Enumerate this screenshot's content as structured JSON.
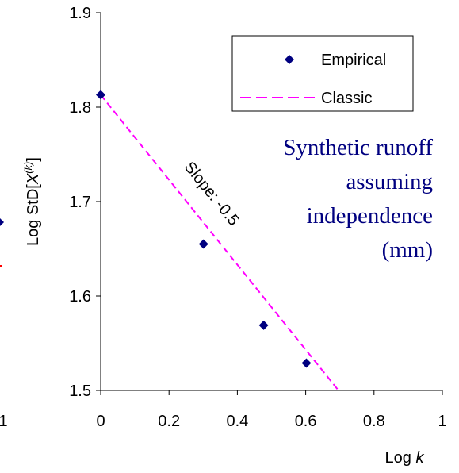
{
  "chart_data": {
    "type": "scatter",
    "ylabel_parts": [
      "Log StD[",
      "X",
      "(k)",
      "]"
    ],
    "xlabel_parts": [
      "Log ",
      "k"
    ],
    "xlim": [
      0,
      1
    ],
    "xticks": [
      0,
      0.2,
      0.4,
      0.6,
      0.8,
      1
    ],
    "ylim": [
      1.5,
      1.9
    ],
    "yticks": [
      1.5,
      1.6,
      1.7,
      1.8,
      1.9
    ],
    "series": [
      {
        "name": "Empirical",
        "color": "#000080",
        "x": [
          0,
          0.301,
          0.477,
          0.602
        ],
        "values": [
          1.813,
          1.655,
          1.569,
          1.529
        ]
      },
      {
        "name": "Classic",
        "color": "#ff00ff",
        "x": [
          0,
          0.696
        ],
        "values": [
          1.813,
          1.5
        ]
      }
    ],
    "annotations": [
      "Slope: -0.5",
      "Synthetic runoff",
      "assuming",
      "independence",
      "(mm)"
    ],
    "adjacent_chart_tick": "1"
  }
}
